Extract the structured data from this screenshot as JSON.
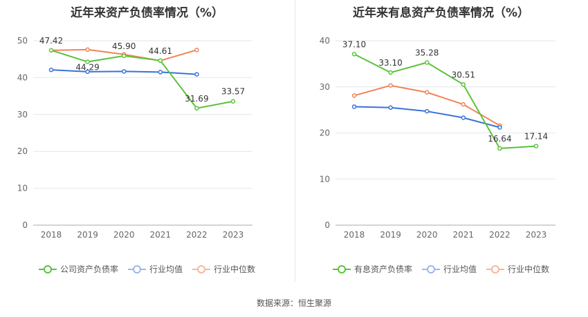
{
  "footer": {
    "source": "数据来源：恒生聚源"
  },
  "colors": {
    "company": "#5ac33c",
    "avg": "#3a72d8",
    "median": "#f08355"
  },
  "chart_data": [
    {
      "type": "line",
      "title": "近年来资产负债率情况（%）",
      "categories": [
        "2018",
        "2019",
        "2020",
        "2021",
        "2022",
        "2023"
      ],
      "ylim": [
        0,
        50
      ],
      "yticks": [
        0,
        10,
        20,
        30,
        40,
        50
      ],
      "grid": true,
      "legend_position": "bottom",
      "series": [
        {
          "name": "公司资产负债率",
          "values": [
            47.42,
            44.29,
            45.9,
            44.61,
            31.69,
            33.57
          ],
          "labels": [
            "47.42",
            "44.29",
            "45.90",
            "44.61",
            "31.69",
            "33.57"
          ]
        },
        {
          "name": "行业均值",
          "values": [
            42.1,
            41.6,
            41.7,
            41.5,
            40.9,
            null
          ]
        },
        {
          "name": "行业中位数",
          "values": [
            47.4,
            47.6,
            46.3,
            44.6,
            47.5,
            null
          ]
        }
      ]
    },
    {
      "type": "line",
      "title": "近年来有息资产负债率情况（%）",
      "categories": [
        "2018",
        "2019",
        "2020",
        "2021",
        "2022",
        "2023"
      ],
      "ylim": [
        0,
        40
      ],
      "yticks": [
        0,
        10,
        20,
        30,
        40
      ],
      "grid": true,
      "legend_position": "bottom",
      "series": [
        {
          "name": "有息资产负债率",
          "values": [
            37.1,
            33.1,
            35.28,
            30.51,
            16.64,
            17.14
          ],
          "labels": [
            "37.10",
            "33.10",
            "35.28",
            "30.51",
            "16.64",
            "17.14"
          ]
        },
        {
          "name": "行业均值",
          "values": [
            25.7,
            25.5,
            24.7,
            23.3,
            21.2,
            null
          ]
        },
        {
          "name": "行业中位数",
          "values": [
            28.1,
            30.3,
            28.8,
            26.2,
            21.6,
            null
          ]
        }
      ]
    }
  ]
}
